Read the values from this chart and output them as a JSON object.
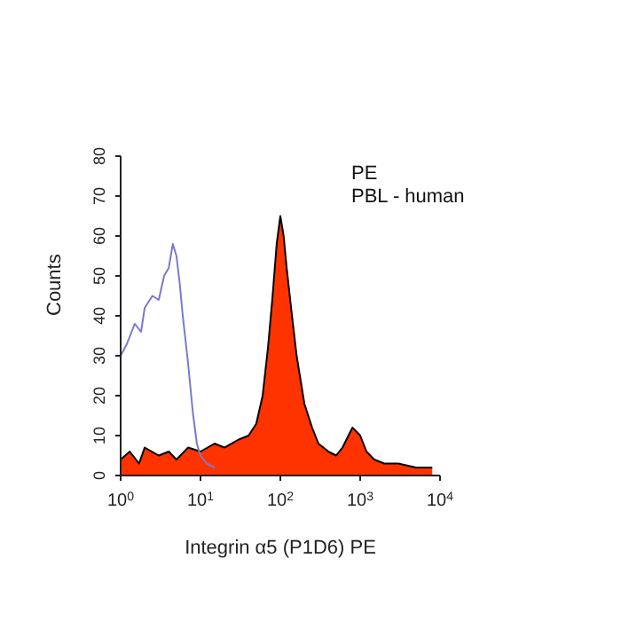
{
  "chart_data": {
    "type": "area",
    "xlabel": "Integrin α5 (P1D6) PE",
    "ylabel": "Counts",
    "annotations": [
      "PE",
      "PBL - human"
    ],
    "log": "x",
    "xlim": [
      1,
      10000
    ],
    "xticks": [
      {
        "value": 1,
        "label": "10$^{0}$"
      },
      {
        "value": 10,
        "label": "10$^{1}$"
      },
      {
        "value": 100,
        "label": "10$^{2}$"
      },
      {
        "value": 1000,
        "label": "10$^{3}$"
      },
      {
        "value": 10000,
        "label": "10$^{4}$"
      }
    ],
    "ylim": [
      0,
      80
    ],
    "yticks": [
      0,
      10,
      20,
      30,
      40,
      50,
      60,
      70,
      80
    ],
    "grid": false,
    "series": [
      {
        "color": "#ff3300",
        "x": [
          1,
          1.3,
          1.7,
          2,
          3,
          4,
          5,
          7,
          10,
          15,
          20,
          30,
          40,
          50,
          60,
          70,
          80,
          90,
          100,
          110,
          120,
          140,
          160,
          200,
          250,
          300,
          400,
          500,
          600,
          800,
          900,
          1000,
          1200,
          1500,
          2000,
          3000,
          5000,
          8000
        ],
        "values": [
          4,
          6,
          3,
          7,
          5,
          6,
          4,
          7,
          6,
          8,
          7,
          9,
          10,
          13,
          20,
          32,
          45,
          58,
          65,
          60,
          52,
          40,
          30,
          18,
          12,
          8,
          6,
          5,
          7,
          12,
          11,
          10,
          6,
          4,
          3,
          3,
          2,
          2
        ]
      },
      {
        "type": "line",
        "color": "#7a7acc",
        "x": [
          1,
          1.2,
          1.5,
          1.8,
          2,
          2.5,
          3,
          3.5,
          4,
          4.5,
          5,
          5.5,
          6,
          7,
          8,
          9,
          10,
          12,
          15
        ],
        "values": [
          30,
          33,
          38,
          36,
          42,
          45,
          44,
          50,
          52,
          58,
          55,
          48,
          40,
          28,
          16,
          8,
          5,
          3,
          2
        ]
      }
    ]
  }
}
